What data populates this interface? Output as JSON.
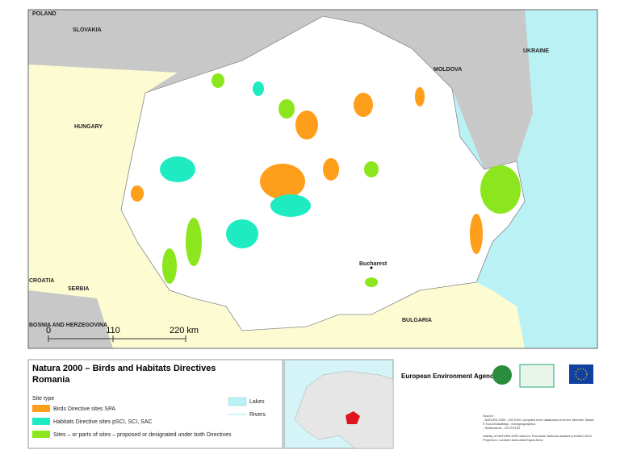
{
  "map": {
    "countries": [
      "POLAND",
      "SLOVAKIA",
      "UKRAINE",
      "MOLDOVA",
      "HUNGARY",
      "CROATIA",
      "SERBIA",
      "BOSNIA AND HERZEGOVINA",
      "BULGARIA"
    ],
    "city": "Bucharest",
    "scale_labels": [
      "0",
      "110",
      "220 km"
    ]
  },
  "legend": {
    "title": "Natura 2000 – Birds and Habitats Directives",
    "subtitle": "Romania",
    "site_type": "Site type",
    "items": [
      "Birds Directive sites SPA",
      "Habitats Directive sites pSCI, SCI, SAC",
      "Sites – or parts of sites – proposed or designated under both Directives"
    ],
    "lakes": "Lakes",
    "rivers": "Rivers"
  },
  "agency": "European Environment Agency",
  "source": [
    "Source :",
    "- NATURA 2000 - DG ENV, compiled from databases from the Member States",
    "© EuroGlobalMap - eurogeographics",
    "- Settlements - DG ESTAT",
    "Validity of NATURA 2000 data for: Romania: National dataset provided 2013",
    "Projection: Lambert Azimuthal Equal Area."
  ]
}
